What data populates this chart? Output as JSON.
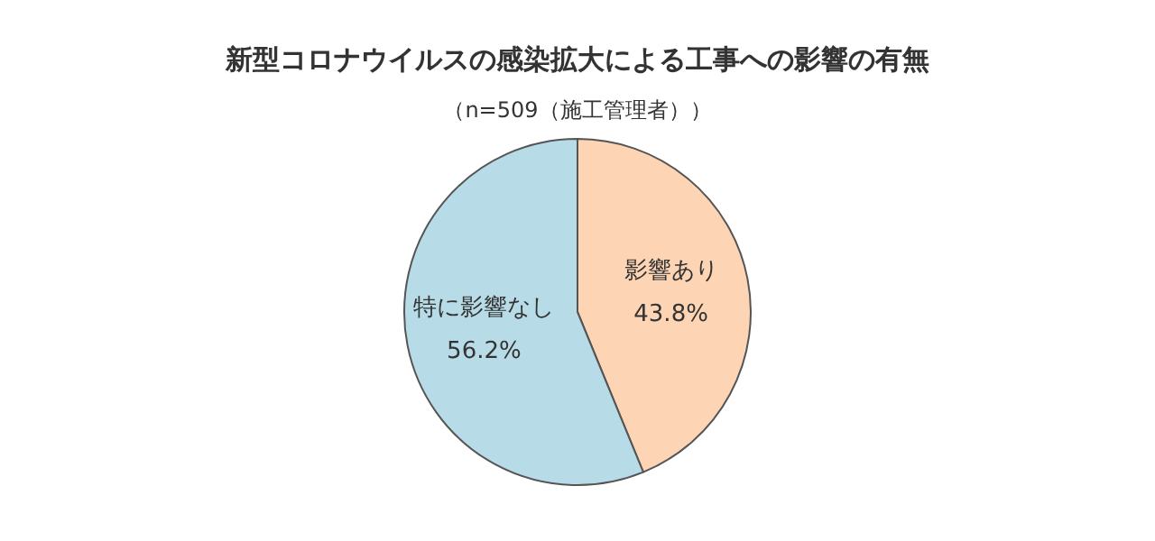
{
  "chart_data": {
    "type": "pie",
    "title": "新型コロナウイルスの感染拡大による工事への影響の有無",
    "subtitle": "（n=509（施工管理者））",
    "categories": [
      "影響あり",
      "特に影響なし"
    ],
    "values": [
      43.8,
      56.2
    ],
    "value_labels": [
      "43.8%",
      "56.2%"
    ],
    "colors": [
      "#fdd5b4",
      "#b7dce8"
    ],
    "legend": false
  }
}
